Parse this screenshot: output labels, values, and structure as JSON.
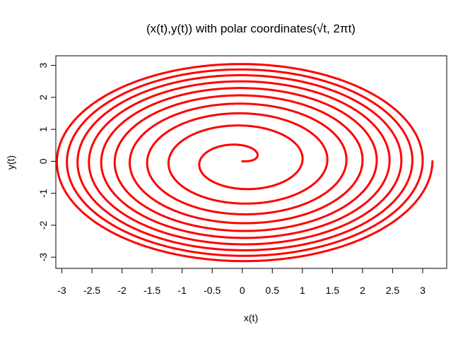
{
  "chart_data": {
    "type": "line",
    "title": "(x(t),y(t)) with polar coordinates(√t, 2πt)",
    "xlabel": "x(t)",
    "ylabel": "y(t)",
    "xlim": [
      -3.1,
      3.4
    ],
    "ylim": [
      -3.35,
      3.3
    ],
    "x_ticks": [
      "-3",
      "-2.5",
      "-2",
      "-1.5",
      "-1",
      "-0.5",
      "0",
      "0.5",
      "1",
      "1.5",
      "2",
      "2.5",
      "3"
    ],
    "x_tick_values": [
      -3,
      -2.5,
      -2,
      -1.5,
      -1,
      -0.5,
      0,
      0.5,
      1,
      1.5,
      2,
      2.5,
      3
    ],
    "y_ticks": [
      "-3",
      "-2",
      "-1",
      "0",
      "1",
      "2",
      "3"
    ],
    "y_tick_values": [
      -3,
      -2,
      -1,
      0,
      1,
      2,
      3
    ],
    "series": [
      {
        "function": "x(t) = sqrt(t)·cos(2πt), y(t) = sqrt(t)·sin(2πt)",
        "t_range": [
          0,
          10
        ],
        "color": "#ff0000"
      }
    ],
    "grid": false,
    "legend": "none"
  }
}
